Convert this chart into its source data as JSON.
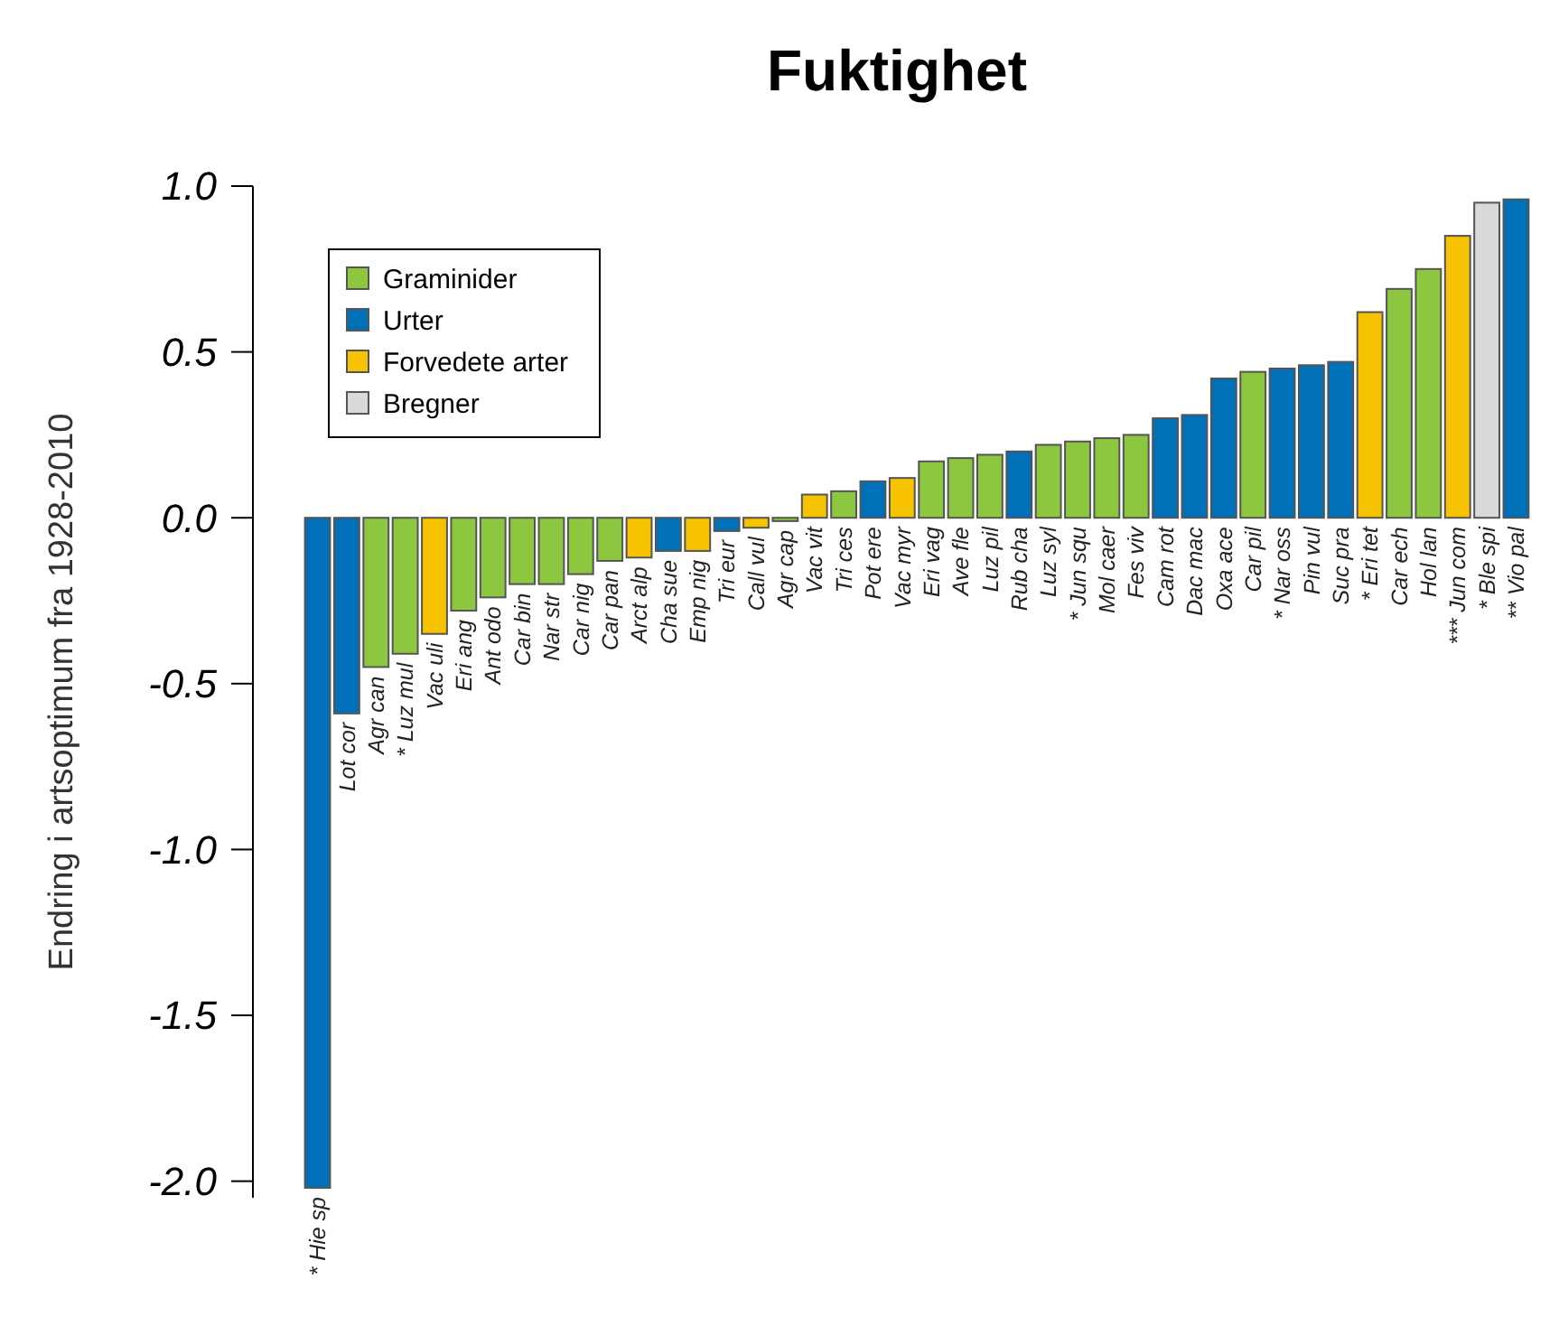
{
  "chart_data": {
    "type": "bar",
    "title": "Fuktighet",
    "ylabel": "Endring i artsoptimum fra 1928-2010",
    "categories": [
      "* Hie sp",
      "Lot cor",
      "Agr can",
      "* Luz mul",
      "Vac uli",
      "Eri ang",
      "Ant odo",
      "Car bin",
      "Nar str",
      "Car nig",
      "Car pan",
      "Arct alp",
      "Cha sue",
      "Emp nig",
      "Tri eur",
      "Call vul",
      "Agr cap",
      "Vac vit",
      "Tri ces",
      "Pot ere",
      "Vac myr",
      "Eri vag",
      "Ave fle",
      "Luz pil",
      "Rub cha",
      "Luz syl",
      "* Jun squ",
      "Mol caer",
      "Fes viv",
      "Cam rot",
      "Dac mac",
      "Oxa ace",
      "Car pil",
      "* Nar oss",
      "Pin vul",
      "Suc pra",
      "* Eri tet",
      "Car ech",
      "Hol lan",
      "*** Jun com",
      "* Ble spi",
      "** Vio pal"
    ],
    "series": [
      {
        "name": "Graminider",
        "color": "#8dc63f",
        "values": [
          null,
          null,
          -0.45,
          -0.41,
          null,
          -0.28,
          -0.24,
          -0.2,
          -0.2,
          -0.17,
          -0.13,
          null,
          null,
          null,
          null,
          null,
          -0.01,
          null,
          0.08,
          null,
          null,
          0.17,
          0.18,
          0.19,
          null,
          0.22,
          0.23,
          0.24,
          0.25,
          null,
          null,
          null,
          0.44,
          null,
          null,
          null,
          null,
          0.69,
          0.75,
          null,
          null,
          null
        ]
      },
      {
        "name": "Urter",
        "color": "#0070b8",
        "values": [
          -2.02,
          -0.59,
          null,
          null,
          null,
          null,
          null,
          null,
          null,
          null,
          null,
          null,
          -0.1,
          null,
          -0.04,
          null,
          null,
          null,
          null,
          0.11,
          null,
          null,
          null,
          null,
          0.2,
          null,
          null,
          null,
          null,
          0.3,
          0.31,
          0.42,
          null,
          0.45,
          0.46,
          0.47,
          null,
          null,
          null,
          null,
          null,
          0.96
        ]
      },
      {
        "name": "Forvedete arter",
        "color": "#f7c200",
        "values": [
          null,
          null,
          null,
          null,
          -0.35,
          null,
          null,
          null,
          null,
          null,
          null,
          -0.12,
          null,
          -0.1,
          null,
          -0.03,
          null,
          0.07,
          null,
          null,
          0.12,
          null,
          null,
          null,
          null,
          null,
          null,
          null,
          null,
          null,
          null,
          null,
          null,
          null,
          null,
          null,
          0.62,
          null,
          null,
          0.85,
          null,
          null
        ]
      },
      {
        "name": "Bregner",
        "color": "#d9d9d9",
        "values": [
          null,
          null,
          null,
          null,
          null,
          null,
          null,
          null,
          null,
          null,
          null,
          null,
          null,
          null,
          null,
          null,
          null,
          null,
          null,
          null,
          null,
          null,
          null,
          null,
          null,
          null,
          null,
          null,
          null,
          null,
          null,
          null,
          null,
          null,
          null,
          null,
          null,
          null,
          null,
          null,
          0.95,
          null
        ]
      }
    ],
    "ylim": [
      -2.05,
      1.0
    ],
    "yticks": [
      {
        "value": 1.0,
        "label": "1.0"
      },
      {
        "value": 0.5,
        "label": "0.5"
      },
      {
        "value": 0,
        "label": "0.0"
      },
      {
        "value": -0.5,
        "label": "-0.5"
      },
      {
        "value": -1.0,
        "label": "-1.0"
      },
      {
        "value": -1.5,
        "label": "-1.5"
      },
      {
        "value": -2.0,
        "label": "-2.0"
      }
    ],
    "legend": "top left"
  }
}
